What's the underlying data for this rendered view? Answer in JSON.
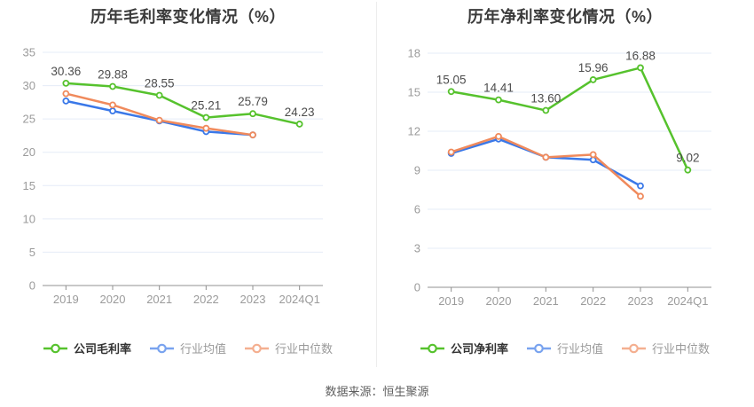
{
  "footer": {
    "source": "数据来源：恒生聚源"
  },
  "colors": {
    "company_green": "#56c22d",
    "industry_blue": "#3a78e8",
    "industry_orange": "#f08a5c",
    "grid_line": "#e5ecf7",
    "axis_line": "#909090",
    "tick_label": "#9b9b9b",
    "data_label": "#4d4d4d",
    "title_text": "#3b3b3b"
  },
  "chart_data": [
    {
      "type": "line",
      "title": "历年毛利率变化情况（%）",
      "xlabel": "",
      "ylabel": "",
      "categories": [
        "2019",
        "2020",
        "2021",
        "2022",
        "2023",
        "2024Q1"
      ],
      "ylim": [
        0,
        35
      ],
      "yticks": [
        0,
        5,
        10,
        15,
        20,
        25,
        30,
        35
      ],
      "grid": true,
      "legend_position": "bottom",
      "series": [
        {
          "name": "公司毛利率",
          "color": "#56c22d",
          "show_labels": true,
          "values": [
            30.36,
            29.88,
            28.55,
            25.21,
            25.79,
            24.23
          ]
        },
        {
          "name": "行业均值",
          "color": "#3a78e8",
          "show_labels": false,
          "values": [
            27.7,
            26.2,
            24.7,
            23.1,
            22.6,
            null
          ]
        },
        {
          "name": "行业中位数",
          "color": "#f08a5c",
          "show_labels": false,
          "values": [
            28.8,
            27.1,
            24.8,
            23.6,
            22.6,
            null
          ]
        }
      ]
    },
    {
      "type": "line",
      "title": "历年净利率变化情况（%）",
      "xlabel": "",
      "ylabel": "",
      "categories": [
        "2019",
        "2020",
        "2021",
        "2022",
        "2023",
        "2024Q1"
      ],
      "ylim": [
        0,
        18
      ],
      "yticks": [
        0,
        3,
        6,
        9,
        12,
        15,
        18
      ],
      "grid": true,
      "legend_position": "bottom",
      "series": [
        {
          "name": "公司净利率",
          "color": "#56c22d",
          "show_labels": true,
          "values": [
            15.05,
            14.41,
            13.6,
            15.96,
            16.88,
            9.02
          ]
        },
        {
          "name": "行业均值",
          "color": "#3a78e8",
          "show_labels": false,
          "values": [
            10.3,
            11.4,
            10.0,
            9.8,
            7.8,
            null
          ]
        },
        {
          "name": "行业中位数",
          "color": "#f08a5c",
          "show_labels": false,
          "values": [
            10.4,
            11.6,
            10.0,
            10.2,
            7.0,
            null
          ]
        }
      ]
    }
  ]
}
